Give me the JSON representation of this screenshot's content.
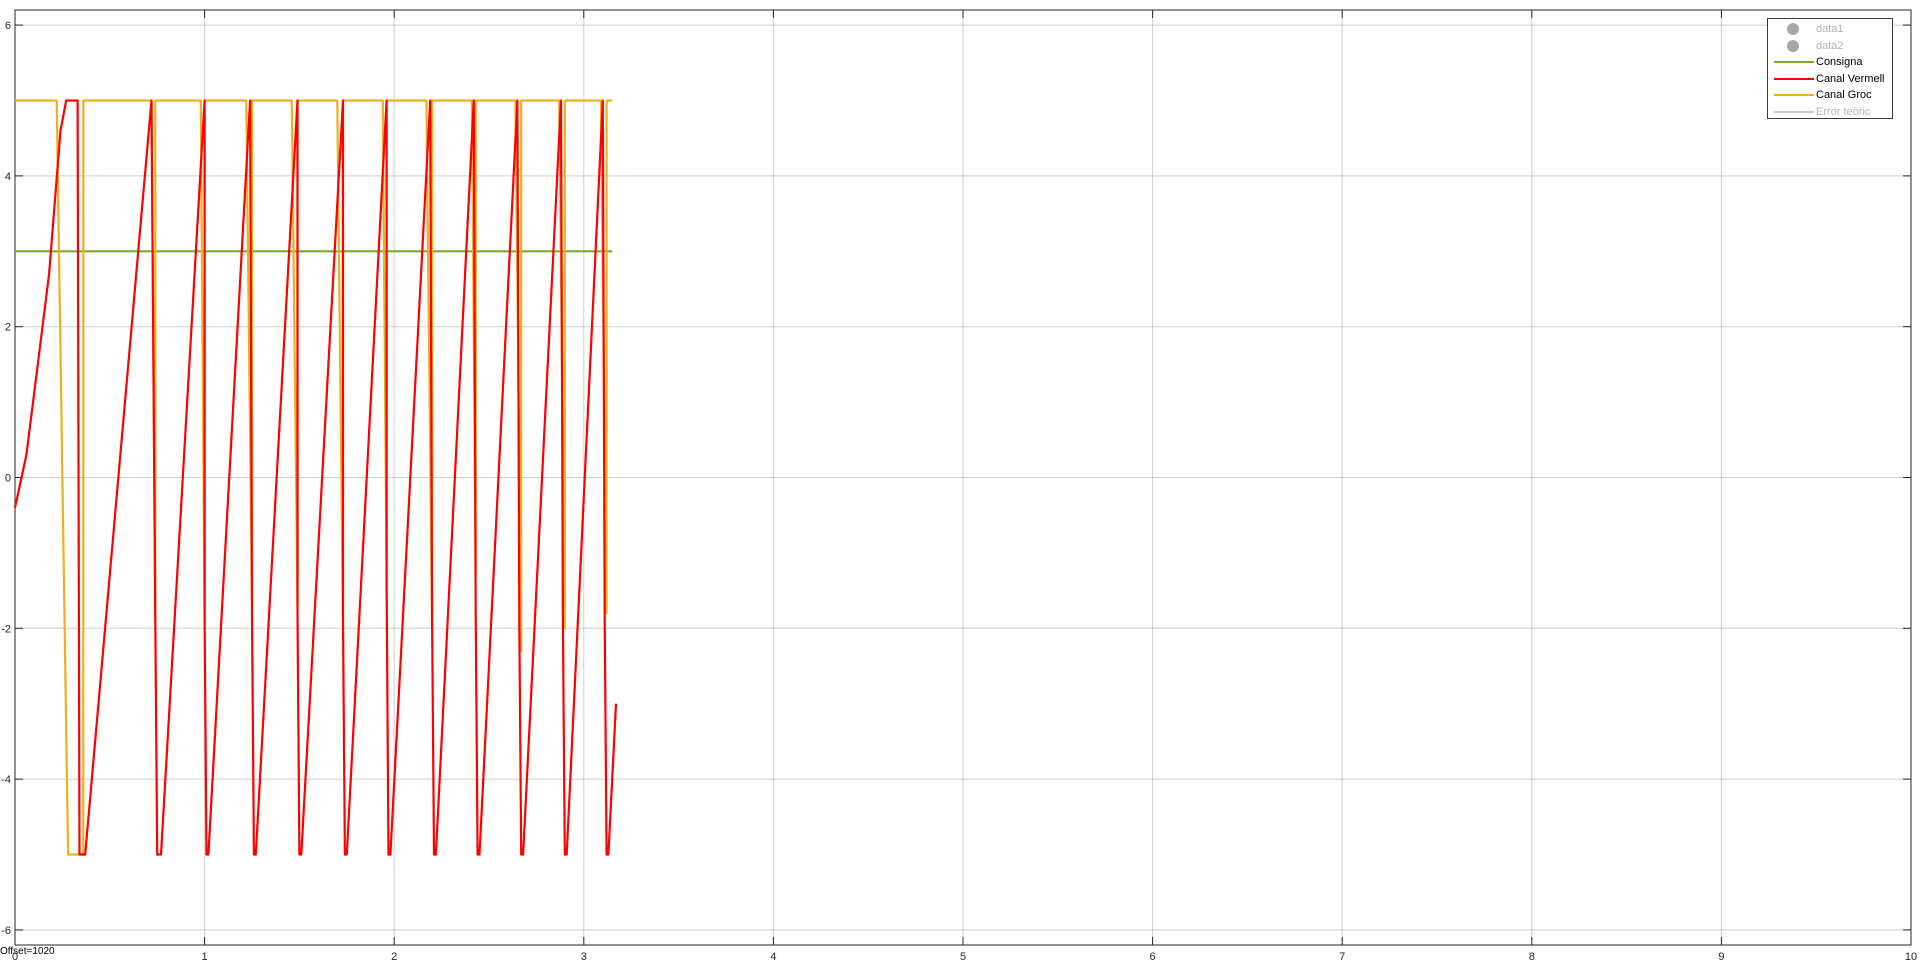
{
  "offset_text": "Offset=1020",
  "legend": {
    "items": [
      {
        "label": "data1",
        "kind": "dot",
        "color": "#a6a6a6",
        "muted": true
      },
      {
        "label": "data2",
        "kind": "dot",
        "color": "#a6a6a6",
        "muted": true
      },
      {
        "label": "Consigna",
        "kind": "line",
        "color": "#77ac30",
        "muted": false
      },
      {
        "label": "Canal Vermell",
        "kind": "line",
        "color": "#ff0000",
        "muted": false
      },
      {
        "label": "Canal Groc",
        "kind": "line",
        "color": "#edb120",
        "muted": false
      },
      {
        "label": "Error teòric",
        "kind": "line",
        "color": "#c8c8c8",
        "muted": true
      }
    ]
  },
  "chart_data": {
    "type": "line",
    "xlim": [
      0,
      10
    ],
    "ylim": [
      -6.2,
      6.2
    ],
    "x_ticks": [
      0,
      1,
      2,
      3,
      4,
      5,
      6,
      7,
      8,
      9,
      10
    ],
    "x_tick_labels": [
      "0",
      "1",
      "2",
      "3",
      "4",
      "5",
      "6",
      "7",
      "8",
      "9",
      "10"
    ],
    "y_ticks": [
      -6,
      -4,
      -2,
      0,
      2,
      4,
      6
    ],
    "y_tick_labels": [
      "-6",
      "-4",
      "-2",
      "0",
      "2",
      "4",
      "6"
    ],
    "grid": true,
    "legend_position": "top-right",
    "series": [
      {
        "name": "Consigna",
        "color": "#77ac30",
        "x": [
          0.0,
          3.15
        ],
        "y": [
          3.0,
          3.0
        ]
      },
      {
        "name": "Canal Groc",
        "color": "#edb120",
        "x": [
          0.0,
          0.22,
          0.28,
          0.28,
          0.36,
          0.36,
          0.72,
          0.74,
          0.74,
          0.98,
          1.0,
          1.0,
          1.22,
          1.25,
          1.25,
          1.46,
          1.49,
          1.49,
          1.7,
          1.73,
          1.73,
          1.94,
          1.96,
          1.96,
          2.17,
          2.2,
          2.2,
          2.41,
          2.43,
          2.43,
          2.64,
          2.67,
          2.67,
          2.87,
          2.9,
          2.9,
          3.09,
          3.12,
          3.12,
          3.15
        ],
        "y": [
          5.0,
          5.0,
          -5.0,
          -5.0,
          -5.0,
          5.0,
          5.0,
          -1.9,
          5.0,
          5.0,
          -1.9,
          5.0,
          5.0,
          -1.7,
          5.0,
          5.0,
          -1.7,
          5.0,
          5.0,
          -2.0,
          5.0,
          5.0,
          -1.4,
          5.0,
          5.0,
          -2.0,
          5.0,
          5.0,
          -1.3,
          5.0,
          5.0,
          -2.3,
          5.0,
          5.0,
          -2.0,
          5.0,
          5.0,
          -1.8,
          5.0,
          5.0
        ]
      },
      {
        "name": "Canal Vermell",
        "color": "#ff0000",
        "x": [
          0.0,
          0.06,
          0.12,
          0.18,
          0.24,
          0.27,
          0.33,
          0.34,
          0.34,
          0.37,
          0.72,
          0.74,
          0.74,
          0.75,
          0.77,
          1.0,
          1.0,
          1.01,
          1.02,
          1.24,
          1.25,
          1.26,
          1.27,
          1.49,
          1.49,
          1.5,
          1.51,
          1.73,
          1.73,
          1.74,
          1.75,
          1.96,
          1.96,
          1.97,
          1.98,
          2.19,
          2.2,
          2.21,
          2.22,
          2.42,
          2.43,
          2.44,
          2.45,
          2.65,
          2.66,
          2.67,
          2.68,
          2.88,
          2.89,
          2.9,
          2.91,
          3.1,
          3.11,
          3.12,
          3.13,
          3.17
        ],
        "y": [
          -0.4,
          0.3,
          1.5,
          2.7,
          4.6,
          5.0,
          5.0,
          -5.0,
          -5.0,
          -5.0,
          5.0,
          -1.9,
          -1.9,
          -5.0,
          -5.0,
          5.0,
          -1.9,
          -5.0,
          -5.0,
          5.0,
          -1.8,
          -5.0,
          -5.0,
          5.0,
          -1.8,
          -5.0,
          -5.0,
          5.0,
          -1.9,
          -5.0,
          -5.0,
          5.0,
          -1.4,
          -5.0,
          -5.0,
          5.0,
          -1.9,
          -5.0,
          -5.0,
          5.0,
          -1.8,
          -5.0,
          -5.0,
          5.0,
          -1.9,
          -5.0,
          -5.0,
          5.0,
          -1.9,
          -5.0,
          -5.0,
          5.0,
          -1.9,
          -5.0,
          -5.0,
          -3.0
        ]
      }
    ]
  }
}
